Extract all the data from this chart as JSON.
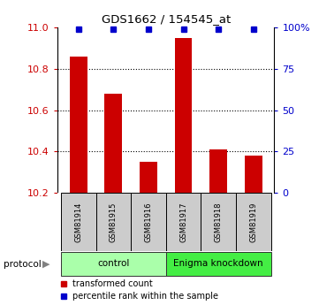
{
  "title": "GDS1662 / 154545_at",
  "samples": [
    "GSM81914",
    "GSM81915",
    "GSM81916",
    "GSM81917",
    "GSM81918",
    "GSM81919"
  ],
  "bar_values": [
    10.86,
    10.68,
    10.35,
    10.95,
    10.41,
    10.38
  ],
  "percentile_values": [
    99,
    99,
    99,
    99,
    99,
    99
  ],
  "ylim_left": [
    10.2,
    11.0
  ],
  "left_ticks": [
    10.2,
    10.4,
    10.6,
    10.8,
    11.0
  ],
  "right_ticks": [
    0,
    25,
    50,
    75,
    100
  ],
  "right_tick_labels": [
    "0",
    "25",
    "50",
    "75",
    "100%"
  ],
  "bar_color": "#cc0000",
  "dot_color": "#0000cc",
  "grid_values": [
    10.4,
    10.6,
    10.8
  ],
  "protocol_groups": [
    {
      "label": "control",
      "start": 0,
      "end": 3,
      "color": "#aaffaa"
    },
    {
      "label": "Enigma knockdown",
      "start": 3,
      "end": 6,
      "color": "#44ee44"
    }
  ],
  "legend_bar_label": "transformed count",
  "legend_dot_label": "percentile rank within the sample",
  "protocol_label": "protocol",
  "background_color": "#ffffff",
  "sample_box_color": "#cccccc",
  "figsize": [
    3.61,
    3.45
  ],
  "dpi": 100
}
